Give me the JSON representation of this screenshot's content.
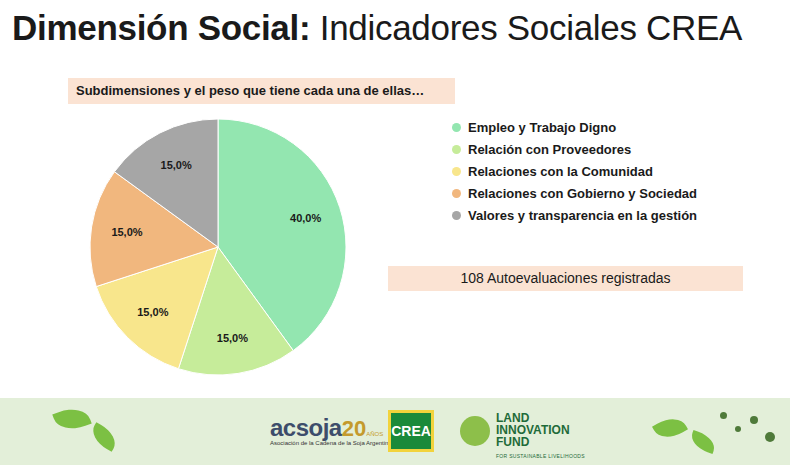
{
  "chart_data": {
    "type": "pie",
    "title": "Dimensión Social: Indicadores Sociales CREA",
    "subtitle": "Subdimensiones y el peso que tiene cada una de ellas…",
    "categories": [
      "Empleo y Trabajo Digno",
      "Relación con Proveedores",
      "Relaciones con la Comunidad",
      "Relaciones con Gobierno y Sociedad",
      "Valores y transparencia en la gestión"
    ],
    "values": [
      40,
      15,
      15,
      15,
      15
    ],
    "value_labels": [
      "40,0%",
      "15,0%",
      "15,0%",
      "15,0%",
      "15,0%"
    ],
    "colors": [
      "#93e6b0",
      "#c6ec9a",
      "#f8e68c",
      "#f1b77e",
      "#a6a6a6"
    ],
    "data_labels": true,
    "legend": "right",
    "annotations": [
      "108 Autoevaluaciones registradas"
    ]
  },
  "footer": {
    "logos": [
      {
        "name": "acsoja",
        "year": "20",
        "years_label": "AÑOS",
        "description": "Asociación de la Cadena de la Soja Argentina"
      },
      {
        "name": "CREA"
      },
      {
        "name": "LAND INNOVATION FUND",
        "description": "FOR SUSTAINABLE LIVELIHOODS"
      }
    ]
  }
}
